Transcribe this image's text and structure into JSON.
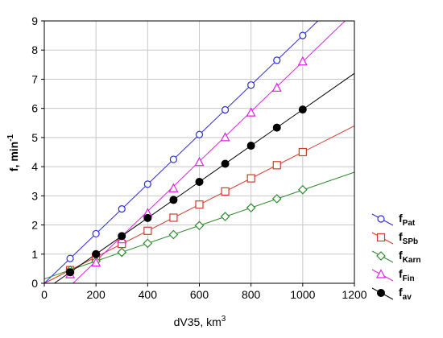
{
  "chart_data": {
    "type": "line",
    "xlabel": "dV35, km",
    "xlabel_superscript": "3",
    "ylabel": "f, min",
    "ylabel_superscript": "-1",
    "xlim": [
      0,
      1200
    ],
    "ylim": [
      0,
      9
    ],
    "xticks": [
      "0",
      "200",
      "400",
      "600",
      "800",
      "1000",
      "1200"
    ],
    "yticks": [
      "0",
      "1",
      "2",
      "3",
      "4",
      "5",
      "6",
      "7",
      "8",
      "9"
    ],
    "grid": true,
    "legend_position": "bottom-right",
    "x": [
      100,
      200,
      300,
      400,
      500,
      600,
      700,
      800,
      900,
      1000
    ],
    "series": [
      {
        "name": "f",
        "subscript": "Pat",
        "color": "#2a2adf",
        "marker": "circle-open",
        "values": [
          0.85,
          1.7,
          2.55,
          3.4,
          4.25,
          5.1,
          5.95,
          6.8,
          7.65,
          8.5
        ],
        "fit": {
          "slope": 0.0085,
          "intercept": 0.0
        }
      },
      {
        "name": "f",
        "subscript": "SPb",
        "color": "#d03a2a",
        "marker": "square-open",
        "values": [
          0.45,
          0.9,
          1.35,
          1.8,
          2.25,
          2.7,
          3.15,
          3.6,
          4.05,
          4.5
        ],
        "fit": {
          "slope": 0.0045,
          "intercept": 0.0
        }
      },
      {
        "name": "f",
        "subscript": "Karn",
        "color": "#2e8a2e",
        "marker": "diamond-open",
        "values": [
          0.45,
          0.76,
          1.06,
          1.37,
          1.67,
          1.98,
          2.29,
          2.59,
          2.9,
          3.21
        ],
        "fit": {
          "slope": 0.00305,
          "intercept": 0.15
        }
      },
      {
        "name": "f",
        "subscript": "Fin",
        "color": "#e020e0",
        "marker": "triangle-open",
        "values": [
          0.3,
          0.7,
          1.5,
          2.4,
          3.25,
          4.15,
          5.0,
          5.85,
          6.7,
          7.6
        ],
        "fit": {
          "slope": 0.00855,
          "intercept": -0.95
        }
      },
      {
        "name": "f",
        "subscript": "av",
        "color": "#000000",
        "marker": "circle-filled",
        "values": [
          0.38,
          1.0,
          1.62,
          2.24,
          2.86,
          3.48,
          4.1,
          4.72,
          5.34,
          5.96
        ],
        "fit": {
          "slope": 0.0062,
          "intercept": -0.24
        }
      }
    ]
  }
}
